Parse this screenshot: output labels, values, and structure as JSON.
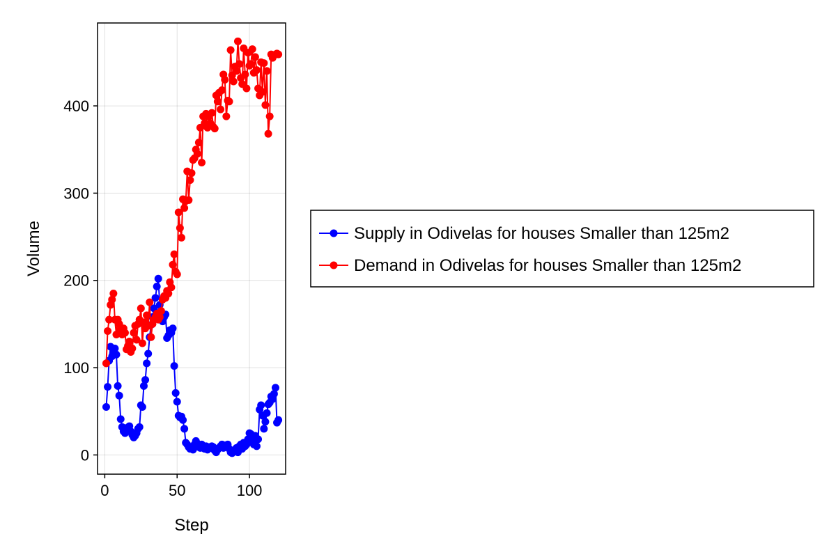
{
  "chart_data": {
    "type": "line",
    "xlabel": "Step",
    "ylabel": "Volume",
    "xlim": [
      -5,
      125
    ],
    "ylim": [
      -22,
      495
    ],
    "xticks": [
      0,
      50,
      100
    ],
    "yticks": [
      0,
      100,
      200,
      300,
      400
    ],
    "grid": true,
    "legend_position": "right",
    "series": [
      {
        "name": "Supply in Odivelas for houses Smaller than 125m2",
        "color": "#0000ff",
        "x": [
          1,
          2,
          3,
          4,
          5,
          6,
          7,
          8,
          9,
          10,
          11,
          12,
          13,
          14,
          15,
          16,
          17,
          18,
          19,
          20,
          21,
          22,
          23,
          24,
          25,
          26,
          27,
          28,
          29,
          30,
          31,
          32,
          33,
          34,
          35,
          36,
          37,
          38,
          39,
          40,
          41,
          42,
          43,
          44,
          45,
          46,
          47,
          48,
          49,
          50,
          51,
          52,
          53,
          54,
          55,
          56,
          57,
          58,
          59,
          60,
          61,
          62,
          63,
          64,
          65,
          66,
          67,
          68,
          69,
          70,
          71,
          72,
          73,
          74,
          75,
          76,
          77,
          78,
          79,
          80,
          81,
          82,
          83,
          84,
          85,
          86,
          87,
          88,
          89,
          90,
          91,
          92,
          93,
          94,
          95,
          96,
          97,
          98,
          99,
          100,
          101,
          102,
          103,
          104,
          105,
          106,
          107,
          108,
          109,
          110,
          111,
          112,
          113,
          114,
          115,
          116,
          117,
          118,
          119,
          120
        ],
        "values": [
          55,
          78,
          108,
          124,
          113,
          118,
          122,
          115,
          79,
          68,
          41,
          32,
          27,
          25,
          31,
          29,
          33,
          27,
          23,
          20,
          22,
          25,
          30,
          32,
          57,
          55,
          79,
          86,
          105,
          116,
          135,
          149,
          158,
          168,
          180,
          193,
          202,
          172,
          158,
          153,
          158,
          161,
          134,
          137,
          143,
          140,
          145,
          102,
          71,
          61,
          45,
          43,
          44,
          40,
          30,
          14,
          12,
          9,
          7,
          8,
          6,
          12,
          16,
          13,
          9,
          8,
          12,
          10,
          7,
          10,
          6,
          9,
          8,
          10,
          9,
          5,
          3,
          6,
          8,
          10,
          12,
          8,
          11,
          9,
          12,
          7,
          3,
          2,
          4,
          6,
          8,
          3,
          10,
          12,
          7,
          14,
          10,
          12,
          18,
          25,
          24,
          15,
          12,
          22,
          10,
          18,
          52,
          57,
          45,
          30,
          38,
          48,
          58,
          60,
          67,
          64,
          70,
          77,
          37,
          40
        ]
      },
      {
        "name": "Demand in Odivelas for houses Smaller than 125m2",
        "color": "#ff0000",
        "x": [
          1,
          2,
          3,
          4,
          5,
          6,
          7,
          8,
          9,
          10,
          11,
          12,
          13,
          14,
          15,
          16,
          17,
          18,
          19,
          20,
          21,
          22,
          23,
          24,
          25,
          26,
          27,
          28,
          29,
          30,
          31,
          32,
          33,
          34,
          35,
          36,
          37,
          38,
          39,
          40,
          41,
          42,
          43,
          44,
          45,
          46,
          47,
          48,
          49,
          50,
          51,
          52,
          53,
          54,
          55,
          56,
          57,
          58,
          59,
          60,
          61,
          62,
          63,
          64,
          65,
          66,
          67,
          68,
          69,
          70,
          71,
          72,
          73,
          74,
          75,
          76,
          77,
          78,
          79,
          80,
          81,
          82,
          83,
          84,
          85,
          86,
          87,
          88,
          89,
          90,
          91,
          92,
          93,
          94,
          95,
          96,
          97,
          98,
          99,
          100,
          101,
          102,
          103,
          104,
          105,
          106,
          107,
          108,
          109,
          110,
          111,
          112,
          113,
          114,
          115,
          116,
          117,
          118,
          119,
          120
        ],
        "values": [
          105,
          142,
          155,
          172,
          178,
          185,
          155,
          138,
          155,
          150,
          143,
          138,
          145,
          140,
          121,
          125,
          130,
          118,
          122,
          140,
          148,
          132,
          150,
          155,
          168,
          128,
          152,
          145,
          160,
          148,
          175,
          135,
          150,
          155,
          158,
          162,
          155,
          158,
          165,
          178,
          182,
          180,
          188,
          185,
          198,
          192,
          218,
          230,
          210,
          207,
          278,
          260,
          249,
          293,
          283,
          291,
          325,
          292,
          315,
          323,
          338,
          340,
          350,
          345,
          358,
          375,
          335,
          388,
          380,
          391,
          375,
          388,
          380,
          392,
          376,
          374,
          412,
          405,
          415,
          396,
          418,
          436,
          430,
          388,
          406,
          405,
          464,
          435,
          428,
          445,
          440,
          474,
          448,
          432,
          425,
          466,
          436,
          420,
          461,
          446,
          448,
          465,
          438,
          456,
          441,
          420,
          412,
          450,
          416,
          449,
          401,
          440,
          368,
          388,
          459,
          455,
          458,
          459,
          460,
          459
        ]
      }
    ]
  }
}
